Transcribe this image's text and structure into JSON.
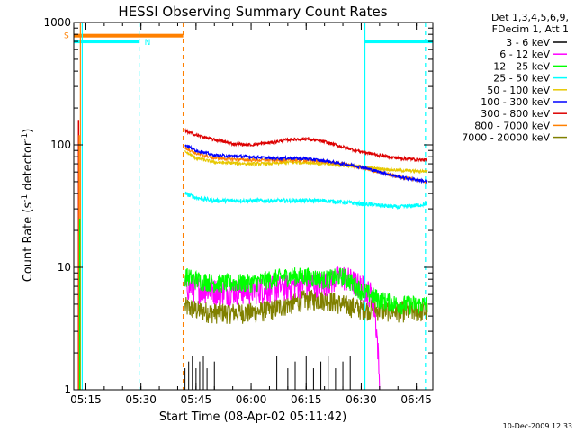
{
  "chart_data": {
    "type": "line",
    "title": "HESSI Observing Summary Count Rates",
    "xlabel": "Start Time (08-Apr-02 05:11:42)",
    "ylabel_main": "Count Rate (s",
    "ylabel_sup1": "-1",
    "ylabel_mid": " detector",
    "ylabel_sup2": "-1",
    "ylabel_end": ")",
    "yscale": "log",
    "ylim": [
      1,
      1000
    ],
    "xlim": [
      "05:11:42",
      "06:49:30"
    ],
    "x_ticks": [
      "05:15",
      "05:30",
      "05:45",
      "06:00",
      "06:15",
      "06:30",
      "06:45"
    ],
    "y_tick_labels": [
      {
        "value": 1,
        "label": "1"
      },
      {
        "value": 10,
        "label": "10"
      },
      {
        "value": 100,
        "label": "100"
      },
      {
        "value": 1000,
        "label": "1000"
      }
    ],
    "legend_header": [
      "Det 1,3,4,5,6,9,",
      "FDecim 1, Att 1"
    ],
    "legend_position": "right",
    "series": [
      {
        "name": "3 - 6 keV",
        "color": "#000000",
        "spikes_x": [
          "05:42",
          "05:43",
          "05:44",
          "05:45",
          "05:46",
          "05:47",
          "05:48",
          "05:50",
          "06:07",
          "06:10",
          "06:12",
          "06:15",
          "06:17",
          "06:19",
          "06:21",
          "06:23",
          "06:25",
          "06:27"
        ],
        "baseline": 1
      },
      {
        "name": "6 - 12 keV",
        "color": "#ff00ff",
        "x": [
          "05:42",
          "05:50",
          "06:00",
          "06:10",
          "06:15",
          "06:20",
          "06:25",
          "06:30",
          "06:33",
          "06:35",
          "06:40",
          "06:45",
          "06:48"
        ],
        "y": [
          7.0,
          6.5,
          6.5,
          7.0,
          7.5,
          7.5,
          8.5,
          7.0,
          6.0,
          1.0,
          1.0,
          1.0,
          1.0
        ]
      },
      {
        "name": "12 - 25 keV",
        "color": "#00ff00",
        "x": [
          "05:42",
          "05:45",
          "05:50",
          "06:00",
          "06:10",
          "06:15",
          "06:20",
          "06:25",
          "06:30",
          "06:35",
          "06:40",
          "06:45",
          "06:48"
        ],
        "y": [
          8.5,
          8.0,
          7.5,
          7.5,
          8.5,
          8.5,
          8.0,
          8.5,
          6.5,
          5.5,
          5.0,
          5.0,
          5.0
        ]
      },
      {
        "name": "25 - 50 keV",
        "color": "#00ffff",
        "x": [
          "05:42",
          "05:45",
          "05:50",
          "06:00",
          "06:10",
          "06:15",
          "06:20",
          "06:25",
          "06:30",
          "06:35",
          "06:40",
          "06:45",
          "06:48"
        ],
        "y": [
          40,
          37,
          35,
          35,
          35,
          35,
          35,
          34,
          33,
          32,
          31,
          32,
          33
        ]
      },
      {
        "name": "50 - 100 keV",
        "color": "#e6c800",
        "x": [
          "05:42",
          "05:45",
          "05:50",
          "06:00",
          "06:05",
          "06:10",
          "06:15",
          "06:20",
          "06:25",
          "06:30",
          "06:35",
          "06:40",
          "06:45",
          "06:48"
        ],
        "y": [
          88,
          78,
          72,
          70,
          70,
          72,
          72,
          70,
          68,
          66,
          64,
          62,
          61,
          61
        ]
      },
      {
        "name": "100 - 300 keV",
        "color": "#0000ff",
        "x": [
          "05:42",
          "05:45",
          "05:50",
          "06:00",
          "06:05",
          "06:10",
          "06:15",
          "06:20",
          "06:25",
          "06:30",
          "06:35",
          "06:40",
          "06:45",
          "06:48"
        ],
        "y": [
          100,
          90,
          82,
          80,
          78,
          78,
          77,
          74,
          70,
          66,
          60,
          55,
          52,
          50
        ]
      },
      {
        "name": "300 - 800 keV",
        "color": "#dd0000",
        "x": [
          "05:42",
          "05:45",
          "05:50",
          "05:55",
          "06:00",
          "06:05",
          "06:10",
          "06:15",
          "06:20",
          "06:25",
          "06:30",
          "06:35",
          "06:40",
          "06:45",
          "06:48"
        ],
        "y": [
          130,
          120,
          110,
          102,
          100,
          104,
          110,
          112,
          106,
          96,
          88,
          82,
          78,
          76,
          75
        ]
      },
      {
        "name": "800 - 7000 keV",
        "color": "#ff8000",
        "x": [
          "05:42",
          "05:45",
          "05:50",
          "06:00",
          "06:10",
          "06:15",
          "06:20",
          "06:25",
          "06:30",
          "06:35",
          "06:40",
          "06:45",
          "06:48"
        ],
        "y": [
          95,
          85,
          78,
          75,
          75,
          75,
          73,
          70,
          65,
          60,
          55,
          52,
          50
        ]
      },
      {
        "name": "7000 - 20000 keV",
        "color": "#808000",
        "x": [
          "05:42",
          "05:45",
          "05:50",
          "06:00",
          "06:05",
          "06:10",
          "06:15",
          "06:20",
          "06:25",
          "06:30",
          "06:35",
          "06:40",
          "06:45",
          "06:48"
        ],
        "y": [
          4.8,
          4.5,
          4.3,
          4.3,
          4.5,
          5.0,
          5.5,
          5.5,
          5.0,
          4.6,
          4.5,
          4.4,
          4.4,
          4.4
        ]
      }
    ],
    "status_bars": [
      {
        "label": "S",
        "color": "#ff8000",
        "x_start": "05:11:42",
        "x_end": "05:41:30",
        "y": 780
      },
      {
        "label": "N",
        "color": "#00ffff",
        "x_start": "05:11:42",
        "x_end": "05:29:30",
        "y": 700
      },
      {
        "label": "",
        "color": "#00ffff",
        "x_start": "06:31:00",
        "x_end": "06:49:30",
        "y": 700
      }
    ],
    "vertical_markers": [
      {
        "x": "05:14:00",
        "color": "#00ffff",
        "style": "solid"
      },
      {
        "x": "05:13:30",
        "color": "#ff8000",
        "style": "solid"
      },
      {
        "x": "05:29:30",
        "color": "#00ffff",
        "style": "dashed"
      },
      {
        "x": "05:41:30",
        "color": "#ff8000",
        "style": "dashed"
      },
      {
        "x": "06:31:00",
        "color": "#00ffff",
        "style": "solid"
      },
      {
        "x": "06:47:30",
        "color": "#00ffff",
        "style": "dashed"
      }
    ],
    "timestamp": "10-Dec-2009 12:33"
  }
}
